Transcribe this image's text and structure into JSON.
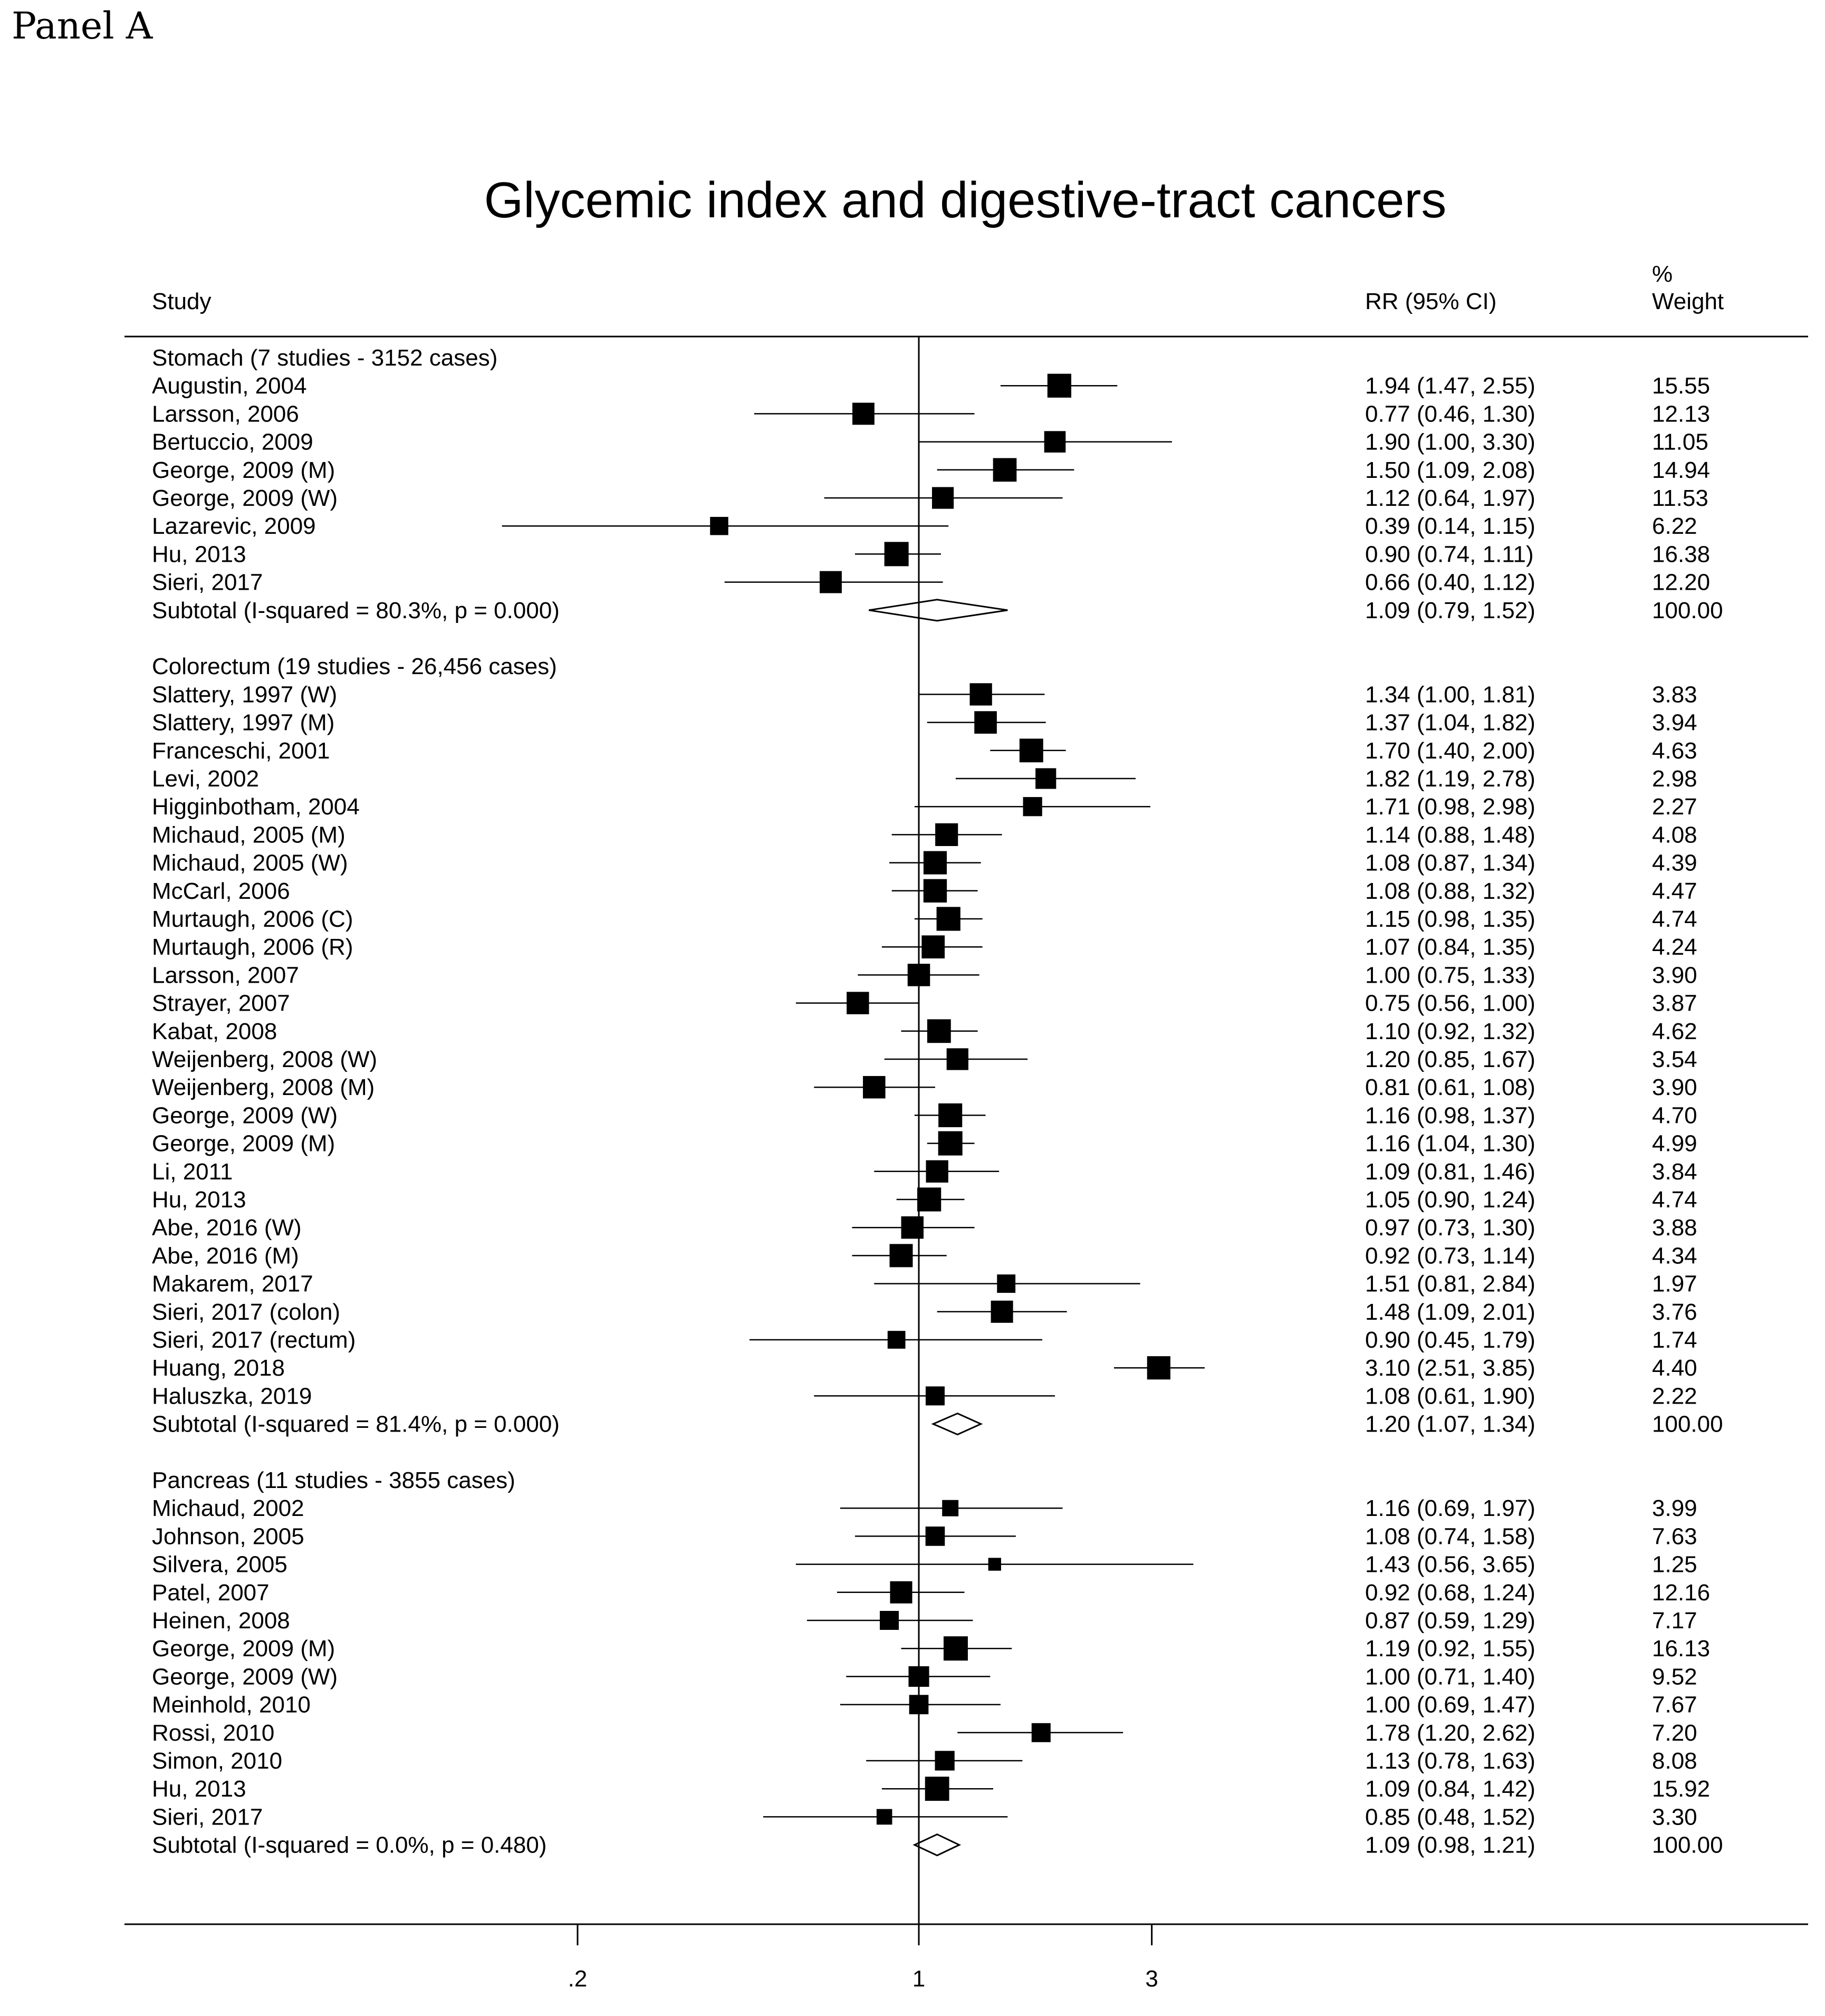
{
  "panel_label": "Panel A",
  "chart_data": {
    "type": "forest",
    "title": "Glycemic index and digestive-tract cancers",
    "columns": {
      "study": "Study",
      "rr": "RR (95% CI)",
      "weight_line1": "%",
      "weight_line2": "Weight"
    },
    "x_scale": "log",
    "x_ticks": [
      {
        "value": 0.2,
        "label": ".2"
      },
      {
        "value": 1,
        "label": "1"
      },
      {
        "value": 3,
        "label": "3"
      }
    ],
    "null_line": 1,
    "groups": [
      {
        "header": "Stomach (7 studies - 3152 cases)",
        "studies": [
          {
            "label": "Augustin, 2004",
            "rr": 1.94,
            "lo": 1.47,
            "hi": 2.55,
            "rr_text": "1.94 (1.47, 2.55)",
            "weight": "15.55"
          },
          {
            "label": "Larsson, 2006",
            "rr": 0.77,
            "lo": 0.46,
            "hi": 1.3,
            "rr_text": "0.77 (0.46, 1.30)",
            "weight": "12.13"
          },
          {
            "label": "Bertuccio, 2009",
            "rr": 1.9,
            "lo": 1.0,
            "hi": 3.3,
            "rr_text": "1.90 (1.00, 3.30)",
            "weight": "11.05"
          },
          {
            "label": "George, 2009 (M)",
            "rr": 1.5,
            "lo": 1.09,
            "hi": 2.08,
            "rr_text": "1.50 (1.09, 2.08)",
            "weight": "14.94"
          },
          {
            "label": "George, 2009 (W)",
            "rr": 1.12,
            "lo": 0.64,
            "hi": 1.97,
            "rr_text": "1.12 (0.64, 1.97)",
            "weight": "11.53"
          },
          {
            "label": "Lazarevic, 2009",
            "rr": 0.39,
            "lo": 0.14,
            "hi": 1.15,
            "rr_text": "0.39 (0.14, 1.15)",
            "weight": "6.22"
          },
          {
            "label": "Hu, 2013",
            "rr": 0.9,
            "lo": 0.74,
            "hi": 1.11,
            "rr_text": "0.90 (0.74, 1.11)",
            "weight": "16.38"
          },
          {
            "label": "Sieri, 2017",
            "rr": 0.66,
            "lo": 0.4,
            "hi": 1.12,
            "rr_text": "0.66 (0.40, 1.12)",
            "weight": "12.20"
          }
        ],
        "subtotal": {
          "label": "Subtotal  (I-squared = 80.3%, p = 0.000)",
          "rr": 1.09,
          "lo": 0.79,
          "hi": 1.52,
          "rr_text": "1.09 (0.79, 1.52)",
          "weight": "100.00"
        }
      },
      {
        "header": "Colorectum (19 studies - 26,456 cases)",
        "studies": [
          {
            "label": "Slattery, 1997 (W)",
            "rr": 1.34,
            "lo": 1.0,
            "hi": 1.81,
            "rr_text": "1.34 (1.00, 1.81)",
            "weight": "3.83"
          },
          {
            "label": "Slattery, 1997 (M)",
            "rr": 1.37,
            "lo": 1.04,
            "hi": 1.82,
            "rr_text": "1.37 (1.04, 1.82)",
            "weight": "3.94"
          },
          {
            "label": "Franceschi, 2001",
            "rr": 1.7,
            "lo": 1.4,
            "hi": 2.0,
            "rr_text": "1.70 (1.40, 2.00)",
            "weight": "4.63"
          },
          {
            "label": "Levi, 2002",
            "rr": 1.82,
            "lo": 1.19,
            "hi": 2.78,
            "rr_text": "1.82 (1.19, 2.78)",
            "weight": "2.98"
          },
          {
            "label": "Higginbotham, 2004",
            "rr": 1.71,
            "lo": 0.98,
            "hi": 2.98,
            "rr_text": "1.71 (0.98, 2.98)",
            "weight": "2.27"
          },
          {
            "label": "Michaud, 2005 (M)",
            "rr": 1.14,
            "lo": 0.88,
            "hi": 1.48,
            "rr_text": "1.14 (0.88, 1.48)",
            "weight": "4.08"
          },
          {
            "label": "Michaud, 2005 (W)",
            "rr": 1.08,
            "lo": 0.87,
            "hi": 1.34,
            "rr_text": "1.08 (0.87, 1.34)",
            "weight": "4.39"
          },
          {
            "label": "McCarl, 2006",
            "rr": 1.08,
            "lo": 0.88,
            "hi": 1.32,
            "rr_text": "1.08 (0.88, 1.32)",
            "weight": "4.47"
          },
          {
            "label": "Murtaugh, 2006 (C)",
            "rr": 1.15,
            "lo": 0.98,
            "hi": 1.35,
            "rr_text": "1.15 (0.98, 1.35)",
            "weight": "4.74"
          },
          {
            "label": "Murtaugh, 2006 (R)",
            "rr": 1.07,
            "lo": 0.84,
            "hi": 1.35,
            "rr_text": "1.07 (0.84, 1.35)",
            "weight": "4.24"
          },
          {
            "label": "Larsson, 2007",
            "rr": 1.0,
            "lo": 0.75,
            "hi": 1.33,
            "rr_text": "1.00 (0.75, 1.33)",
            "weight": "3.90"
          },
          {
            "label": "Strayer, 2007",
            "rr": 0.75,
            "lo": 0.56,
            "hi": 1.0,
            "rr_text": "0.75 (0.56, 1.00)",
            "weight": "3.87"
          },
          {
            "label": "Kabat, 2008",
            "rr": 1.1,
            "lo": 0.92,
            "hi": 1.32,
            "rr_text": "1.10 (0.92, 1.32)",
            "weight": "4.62"
          },
          {
            "label": "Weijenberg, 2008 (W)",
            "rr": 1.2,
            "lo": 0.85,
            "hi": 1.67,
            "rr_text": "1.20 (0.85, 1.67)",
            "weight": "3.54"
          },
          {
            "label": "Weijenberg, 2008 (M)",
            "rr": 0.81,
            "lo": 0.61,
            "hi": 1.08,
            "rr_text": "0.81 (0.61, 1.08)",
            "weight": "3.90"
          },
          {
            "label": "George, 2009 (W)",
            "rr": 1.16,
            "lo": 0.98,
            "hi": 1.37,
            "rr_text": "1.16 (0.98, 1.37)",
            "weight": "4.70"
          },
          {
            "label": "George, 2009 (M)",
            "rr": 1.16,
            "lo": 1.04,
            "hi": 1.3,
            "rr_text": "1.16 (1.04, 1.30)",
            "weight": "4.99"
          },
          {
            "label": "Li, 2011",
            "rr": 1.09,
            "lo": 0.81,
            "hi": 1.46,
            "rr_text": "1.09 (0.81, 1.46)",
            "weight": "3.84"
          },
          {
            "label": "Hu, 2013",
            "rr": 1.05,
            "lo": 0.9,
            "hi": 1.24,
            "rr_text": "1.05 (0.90, 1.24)",
            "weight": "4.74"
          },
          {
            "label": "Abe, 2016 (W)",
            "rr": 0.97,
            "lo": 0.73,
            "hi": 1.3,
            "rr_text": "0.97 (0.73, 1.30)",
            "weight": "3.88"
          },
          {
            "label": "Abe, 2016 (M)",
            "rr": 0.92,
            "lo": 0.73,
            "hi": 1.14,
            "rr_text": "0.92 (0.73, 1.14)",
            "weight": "4.34"
          },
          {
            "label": "Makarem, 2017",
            "rr": 1.51,
            "lo": 0.81,
            "hi": 2.84,
            "rr_text": "1.51 (0.81, 2.84)",
            "weight": "1.97"
          },
          {
            "label": "Sieri, 2017 (colon)",
            "rr": 1.48,
            "lo": 1.09,
            "hi": 2.01,
            "rr_text": "1.48 (1.09, 2.01)",
            "weight": "3.76"
          },
          {
            "label": "Sieri, 2017 (rectum)",
            "rr": 0.9,
            "lo": 0.45,
            "hi": 1.79,
            "rr_text": "0.90 (0.45, 1.79)",
            "weight": "1.74"
          },
          {
            "label": "Huang, 2018",
            "rr": 3.1,
            "lo": 2.51,
            "hi": 3.85,
            "rr_text": "3.10 (2.51, 3.85)",
            "weight": "4.40"
          },
          {
            "label": "Haluszka, 2019",
            "rr": 1.08,
            "lo": 0.61,
            "hi": 1.9,
            "rr_text": "1.08 (0.61, 1.90)",
            "weight": "2.22"
          }
        ],
        "subtotal": {
          "label": "Subtotal  (I-squared = 81.4%, p = 0.000)",
          "rr": 1.2,
          "lo": 1.07,
          "hi": 1.34,
          "rr_text": "1.20 (1.07, 1.34)",
          "weight": "100.00"
        }
      },
      {
        "header": "Pancreas (11 studies - 3855 cases)",
        "studies": [
          {
            "label": "Michaud, 2002",
            "rr": 1.16,
            "lo": 0.69,
            "hi": 1.97,
            "rr_text": "1.16 (0.69, 1.97)",
            "weight": "3.99"
          },
          {
            "label": "Johnson, 2005",
            "rr": 1.08,
            "lo": 0.74,
            "hi": 1.58,
            "rr_text": "1.08 (0.74, 1.58)",
            "weight": "7.63"
          },
          {
            "label": "Silvera, 2005",
            "rr": 1.43,
            "lo": 0.56,
            "hi": 3.65,
            "rr_text": "1.43 (0.56, 3.65)",
            "weight": "1.25"
          },
          {
            "label": "Patel, 2007",
            "rr": 0.92,
            "lo": 0.68,
            "hi": 1.24,
            "rr_text": "0.92 (0.68, 1.24)",
            "weight": "12.16"
          },
          {
            "label": "Heinen, 2008",
            "rr": 0.87,
            "lo": 0.59,
            "hi": 1.29,
            "rr_text": "0.87 (0.59, 1.29)",
            "weight": "7.17"
          },
          {
            "label": "George, 2009 (M)",
            "rr": 1.19,
            "lo": 0.92,
            "hi": 1.55,
            "rr_text": "1.19 (0.92, 1.55)",
            "weight": "16.13"
          },
          {
            "label": "George, 2009 (W)",
            "rr": 1.0,
            "lo": 0.71,
            "hi": 1.4,
            "rr_text": "1.00 (0.71, 1.40)",
            "weight": "9.52"
          },
          {
            "label": "Meinhold, 2010",
            "rr": 1.0,
            "lo": 0.69,
            "hi": 1.47,
            "rr_text": "1.00 (0.69, 1.47)",
            "weight": "7.67"
          },
          {
            "label": "Rossi, 2010",
            "rr": 1.78,
            "lo": 1.2,
            "hi": 2.62,
            "rr_text": "1.78 (1.20, 2.62)",
            "weight": "7.20"
          },
          {
            "label": "Simon, 2010",
            "rr": 1.13,
            "lo": 0.78,
            "hi": 1.63,
            "rr_text": "1.13 (0.78, 1.63)",
            "weight": "8.08"
          },
          {
            "label": "Hu, 2013",
            "rr": 1.09,
            "lo": 0.84,
            "hi": 1.42,
            "rr_text": "1.09 (0.84, 1.42)",
            "weight": "15.92"
          },
          {
            "label": "Sieri, 2017",
            "rr": 0.85,
            "lo": 0.48,
            "hi": 1.52,
            "rr_text": "0.85 (0.48, 1.52)",
            "weight": "3.30"
          }
        ],
        "subtotal": {
          "label": "Subtotal  (I-squared = 0.0%, p = 0.480)",
          "rr": 1.09,
          "lo": 0.98,
          "hi": 1.21,
          "rr_text": "1.09 (0.98, 1.21)",
          "weight": "100.00"
        }
      }
    ]
  }
}
